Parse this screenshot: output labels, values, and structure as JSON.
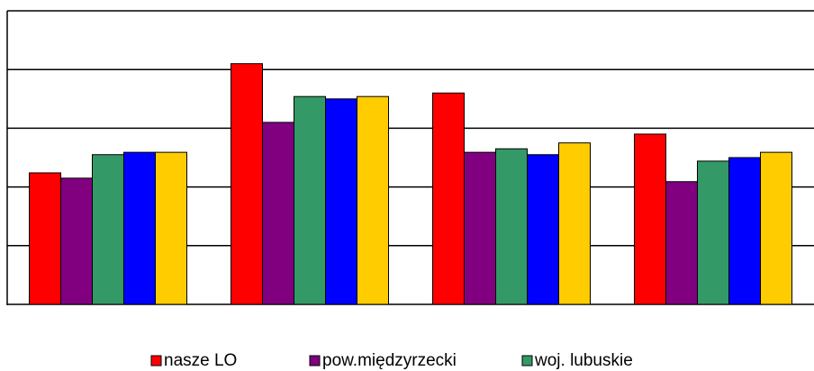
{
  "chart_data": {
    "type": "bar",
    "categories": [
      null,
      null,
      null,
      null
    ],
    "series": [
      {
        "name": "nasze LO",
        "color": "#ff0000",
        "values": [
          2.24,
          4.1,
          3.6,
          2.9
        ]
      },
      {
        "name": "pow.międzyrzecki",
        "color": "#800080",
        "values": [
          2.15,
          3.1,
          2.59,
          2.09
        ]
      },
      {
        "name": "woj. lubuskie",
        "color": "#339966",
        "values": [
          2.55,
          3.54,
          2.65,
          2.44
        ]
      },
      {
        "color": "#0000ff",
        "values": [
          2.59,
          3.5,
          2.55,
          2.5
        ]
      },
      {
        "color": "#ffcc00",
        "values": [
          2.59,
          3.54,
          2.75,
          2.59
        ]
      }
    ],
    "ylim": [
      0,
      5
    ],
    "yticks": [
      0,
      1,
      2,
      3,
      4,
      5
    ],
    "grid": true
  }
}
